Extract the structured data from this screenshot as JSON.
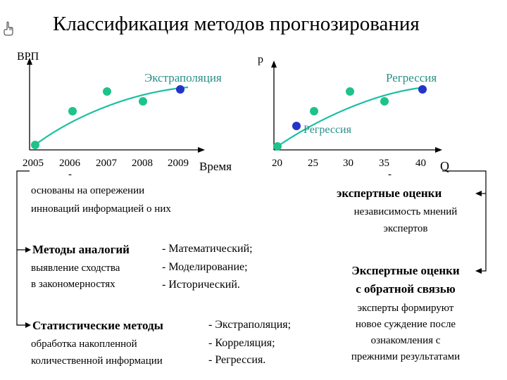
{
  "title": "Классификация методов прогнозирования",
  "icons": {
    "bullet": "pointing-hand-icon"
  },
  "colors": {
    "curve": "#1bbfa3",
    "dot_green": "#1fc28a",
    "dot_blue": "#2434c8",
    "label_teal": "#2a8f86"
  },
  "left_chart": {
    "ylabel": "ВРП",
    "xlabel": "Время",
    "curve_label": "Экстраполяция",
    "ticks": [
      "2005",
      "2006",
      "2007",
      "2008",
      "2009"
    ]
  },
  "right_chart": {
    "ylabel": "р",
    "xlabel": "Q",
    "curve_label_top": "Регрессия",
    "curve_label_point": "Регрессия",
    "ticks": [
      "20",
      "25",
      "30",
      "35",
      "40"
    ]
  },
  "left_column": {
    "dash1": "-",
    "intuition_lines": [
      "основаны на опережении",
      "инноваций информацией о них"
    ],
    "analogies_title": "Методы аналогий",
    "analogies_lines": [
      "выявление сходства",
      "в закономерностях"
    ],
    "analogies_methods": [
      "- Математический;",
      "- Моделирование;",
      "- Исторический."
    ],
    "statistical_title": "Статистические методы",
    "statistical_lines": [
      "обработка накопленной",
      "количественной информации"
    ],
    "statistical_methods": [
      "- Экстраполяция;",
      "- Корреляция;",
      "- Регрессия."
    ]
  },
  "right_column": {
    "dash1": "-",
    "expert_title": "экспертные оценки",
    "expert_desc": [
      "независимость мнений",
      "экспертов"
    ],
    "feedback_title": [
      "Экспертные оценки",
      "с обратной связью"
    ],
    "feedback_desc": [
      "эксперты формируют",
      "новое суждение после",
      "ознакомления с",
      "прежними результатами"
    ]
  }
}
